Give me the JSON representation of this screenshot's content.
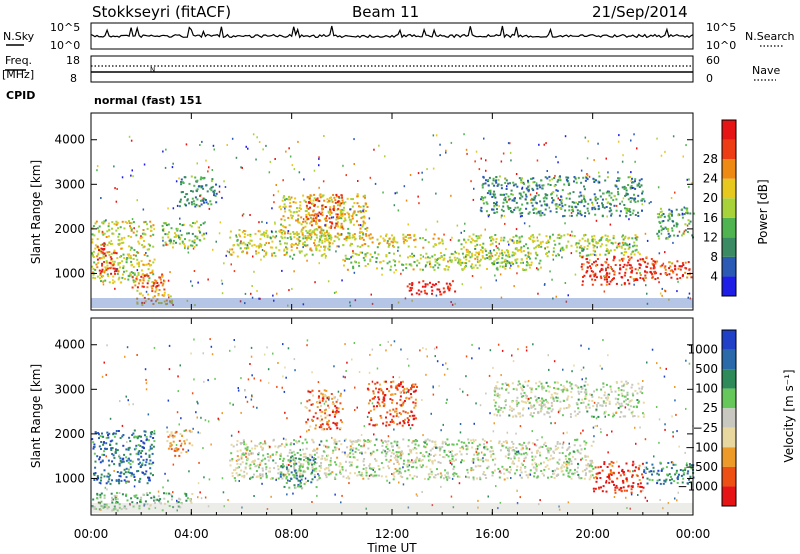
{
  "header": {
    "station": "Stokkseyri (fitACF)",
    "beam": "Beam 11",
    "date": "21/Sep/2014"
  },
  "top_panel": {
    "nsky_label": "N.Sky",
    "nsky_ticks": [
      "10^5",
      "10^0"
    ],
    "nsearch_label": "N.Search",
    "nsearch_ticks": [
      "10^5",
      "10^0"
    ],
    "freq_label": "Freq.",
    "freq_unit": "[MHz]",
    "freq_ticks": [
      "18",
      "8"
    ],
    "nave_label": "Nave",
    "nave_ticks": [
      "60",
      "0"
    ],
    "cpid_label": "CPID",
    "cpid_value": "normal (fast) 151"
  },
  "colors": {
    "power_scale": [
      "#1e1ee6",
      "#2a5ab4",
      "#3a8a64",
      "#4fb44f",
      "#a8d23a",
      "#e6c81e",
      "#ee8a14",
      "#ee3c14",
      "#e61414"
    ],
    "velocity_scale": [
      "#2040c8",
      "#2a6aaa",
      "#2e8a58",
      "#66c85a",
      "#c8c8c0",
      "#e8d8a0",
      "#ee9a28",
      "#ee5014",
      "#e61414"
    ]
  },
  "chart_data": [
    {
      "type": "heatmap",
      "panel": "power",
      "ylabel": "Slant Range [km]",
      "ylim": [
        180,
        4600
      ],
      "yticks": [
        "1000",
        "2000",
        "3000",
        "4000"
      ],
      "xlabel": "Time UT",
      "xticks": [
        "00:00",
        "04:00",
        "08:00",
        "12:00",
        "16:00",
        "20:00",
        "00:00"
      ],
      "colorbar": {
        "label": "Power [dB]",
        "ticks": [
          "4",
          "8",
          "12",
          "16",
          "20",
          "24",
          "28"
        ]
      },
      "regions": [
        {
          "t": [
            0.0,
            2.5
          ],
          "r": [
            800,
            2200
          ],
          "level": 0.55
        },
        {
          "t": [
            0.2,
            1.0
          ],
          "r": [
            1000,
            1700
          ],
          "level": 0.9
        },
        {
          "t": [
            1.5,
            3.0
          ],
          "r": [
            700,
            1000
          ],
          "level": 0.8
        },
        {
          "t": [
            1.8,
            3.2
          ],
          "r": [
            300,
            700
          ],
          "level": 0.65
        },
        {
          "t": [
            2.8,
            4.5
          ],
          "r": [
            1600,
            2200
          ],
          "level": 0.45
        },
        {
          "t": [
            5.5,
            9.5
          ],
          "r": [
            1400,
            2000
          ],
          "level": 0.55
        },
        {
          "t": [
            7.5,
            11.0
          ],
          "r": [
            1800,
            2800
          ],
          "level": 0.6
        },
        {
          "t": [
            8.5,
            10.0
          ],
          "r": [
            2000,
            2800
          ],
          "level": 0.8
        },
        {
          "t": [
            9.0,
            14.0
          ],
          "r": [
            1600,
            1900
          ],
          "level": 0.6
        },
        {
          "t": [
            10.0,
            18.0
          ],
          "r": [
            1100,
            1500
          ],
          "level": 0.5
        },
        {
          "t": [
            12.5,
            14.5
          ],
          "r": [
            550,
            850
          ],
          "level": 0.95
        },
        {
          "t": [
            14.5,
            22.0
          ],
          "r": [
            1400,
            1900
          ],
          "level": 0.5
        },
        {
          "t": [
            19.5,
            22.5
          ],
          "r": [
            750,
            1400
          ],
          "level": 0.9
        },
        {
          "t": [
            22.0,
            24.0
          ],
          "r": [
            900,
            1300
          ],
          "level": 0.85
        },
        {
          "t": [
            22.5,
            24.0
          ],
          "r": [
            1800,
            2500
          ],
          "level": 0.35
        },
        {
          "t": [
            3.5,
            5.0
          ],
          "r": [
            2500,
            3200
          ],
          "level": 0.3
        },
        {
          "t": [
            15.5,
            22.0
          ],
          "r": [
            2300,
            3200
          ],
          "level": 0.3
        }
      ]
    },
    {
      "type": "heatmap",
      "panel": "velocity",
      "ylabel": "Slant Range [km]",
      "ylim": [
        180,
        4600
      ],
      "yticks": [
        "1000",
        "2000",
        "3000",
        "4000"
      ],
      "xlabel": "Time UT",
      "xticks": [
        "00:00",
        "04:00",
        "08:00",
        "12:00",
        "16:00",
        "20:00",
        "00:00"
      ],
      "colorbar": {
        "label": "Velocity [m s⁻¹]",
        "ticks": [
          "1000",
          "500",
          "100",
          "25",
          "−25",
          "−100",
          "−500",
          "−1000"
        ]
      },
      "regions": [
        {
          "t": [
            0.0,
            2.5
          ],
          "r": [
            900,
            2100
          ],
          "level": 0.2
        },
        {
          "t": [
            3.0,
            4.0
          ],
          "r": [
            1500,
            2100
          ],
          "level": 0.7
        },
        {
          "t": [
            0.0,
            4.0
          ],
          "r": [
            300,
            700
          ],
          "level": 0.4
        },
        {
          "t": [
            5.5,
            20.0
          ],
          "r": [
            1000,
            1900
          ],
          "level": 0.5
        },
        {
          "t": [
            7.5,
            9.0
          ],
          "r": [
            800,
            1500
          ],
          "level": 0.3
        },
        {
          "t": [
            8.5,
            10.0
          ],
          "r": [
            2100,
            3000
          ],
          "level": 0.8
        },
        {
          "t": [
            11.0,
            13.0
          ],
          "r": [
            2200,
            3200
          ],
          "level": 0.85
        },
        {
          "t": [
            20.0,
            22.0
          ],
          "r": [
            700,
            1400
          ],
          "level": 0.9
        },
        {
          "t": [
            22.0,
            24.0
          ],
          "r": [
            900,
            1400
          ],
          "level": 0.25
        },
        {
          "t": [
            16.0,
            22.0
          ],
          "r": [
            2400,
            3200
          ],
          "level": 0.5
        }
      ]
    }
  ]
}
